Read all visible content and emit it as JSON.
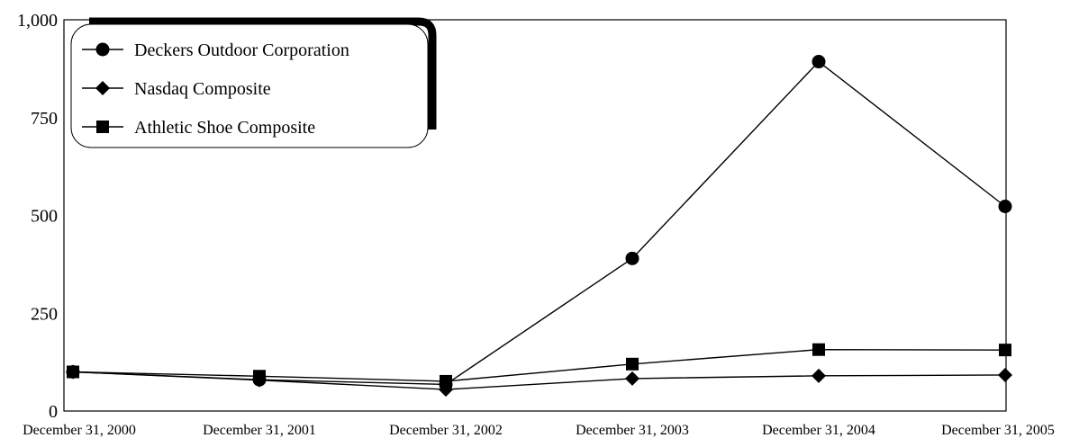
{
  "chart_data": {
    "type": "line",
    "title": "",
    "xlabel": "",
    "ylabel": "",
    "categories": [
      "December 31, 2000",
      "December 31, 2001",
      "December 31, 2002",
      "December 31, 2003",
      "December 31, 2004",
      "December 31, 2005"
    ],
    "ylim": [
      0,
      1000
    ],
    "y_ticks": [
      "0",
      "250",
      "500",
      "750",
      "1,000"
    ],
    "y_tick_values": [
      0,
      250,
      500,
      750,
      1000
    ],
    "grid": false,
    "legend_position": "top-left",
    "series": [
      {
        "name": "Deckers Outdoor Corporation",
        "marker": "circle",
        "values": [
          100,
          80,
          68,
          390,
          893,
          523
        ]
      },
      {
        "name": "Nasdaq Composite",
        "marker": "diamond",
        "values": [
          100,
          79,
          55,
          83,
          90,
          92
        ]
      },
      {
        "name": "Athletic Shoe Composite",
        "marker": "square",
        "values": [
          100,
          89,
          76,
          120,
          157,
          156
        ]
      }
    ],
    "colors": {
      "line": "#000000",
      "marker": "#000000",
      "background": "#ffffff"
    }
  }
}
